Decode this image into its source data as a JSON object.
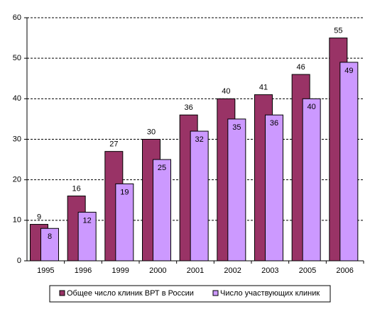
{
  "chart_data": {
    "type": "bar",
    "categories": [
      "1995",
      "1996",
      "1999",
      "2000",
      "2001",
      "2002",
      "2003",
      "2005",
      "2006"
    ],
    "series": [
      {
        "name": "Общее число клиник ВРТ в России",
        "color": "#993366",
        "values": [
          9,
          16,
          27,
          30,
          36,
          40,
          41,
          46,
          55
        ]
      },
      {
        "name": "Число участвующих клиник",
        "color": "#cc99ff",
        "values": [
          8,
          12,
          19,
          25,
          32,
          35,
          36,
          40,
          49
        ]
      }
    ],
    "ylim": [
      0,
      60
    ],
    "yticks": [
      0,
      10,
      20,
      30,
      40,
      50,
      60
    ],
    "grid": true,
    "legend": "bottom"
  }
}
